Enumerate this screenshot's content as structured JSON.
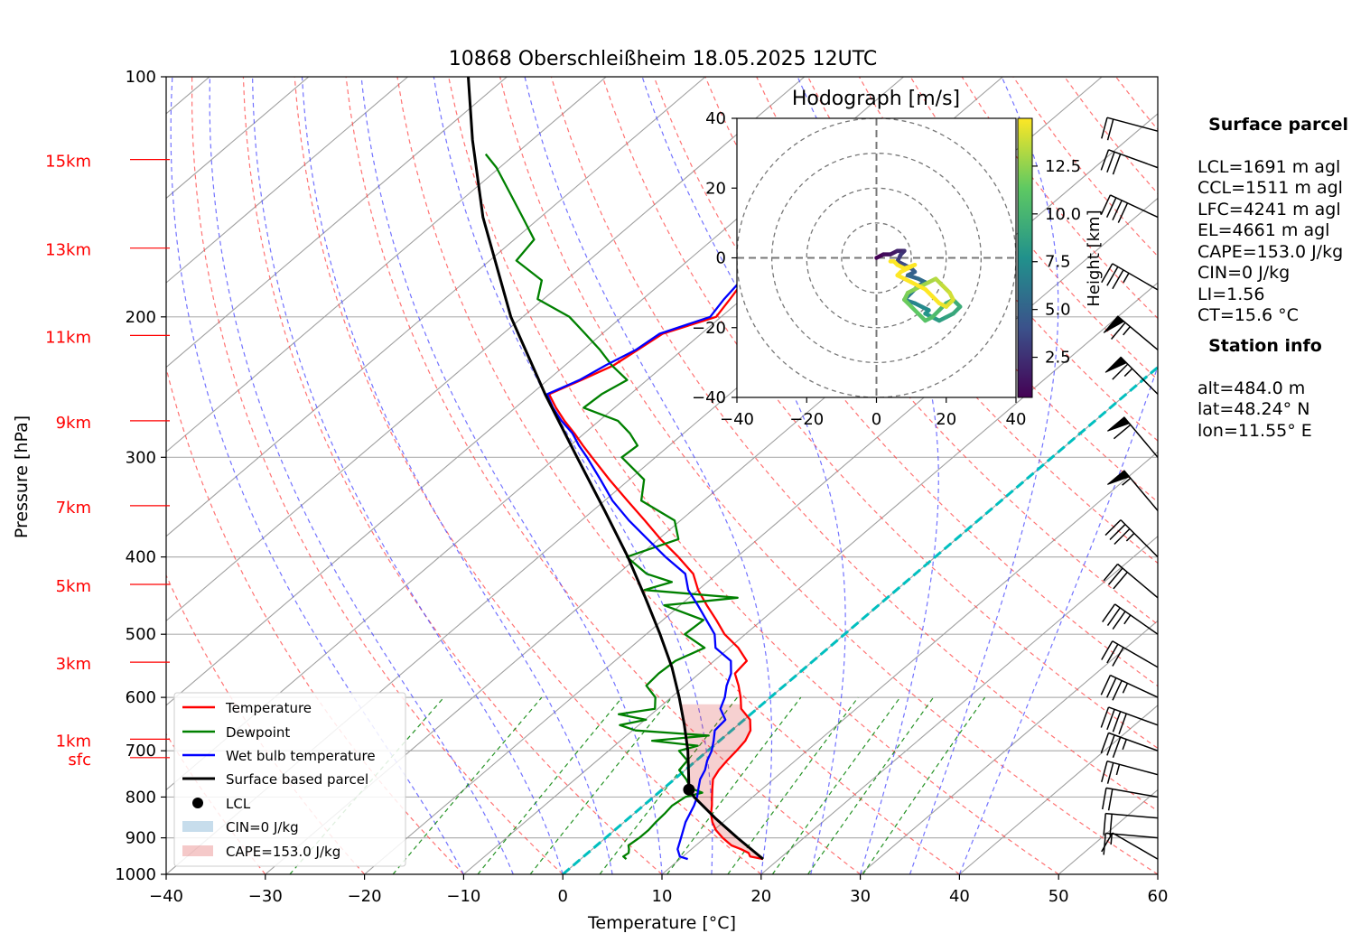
{
  "chart_data": {
    "type": "line",
    "title": "10868 Oberschleißheim 18.05.2025 12UTC",
    "xlabel": "Temperature [°C]",
    "ylabel": "Pressure [hPa]",
    "xlim": [
      -40,
      60
    ],
    "ylim": [
      1000,
      100
    ],
    "y_scale": "log",
    "skew": true,
    "x_ticks": [
      "−40",
      "−30",
      "−20",
      "−10",
      "0",
      "10",
      "20",
      "30",
      "40",
      "50",
      "60"
    ],
    "y_ticks": [
      "100",
      "200",
      "300",
      "400",
      "500",
      "600",
      "700",
      "800",
      "900",
      "1000"
    ],
    "height_labels": [
      {
        "label": "15km",
        "p": 127
      },
      {
        "label": "13km",
        "p": 164
      },
      {
        "label": "11km",
        "p": 211
      },
      {
        "label": "9km",
        "p": 270
      },
      {
        "label": "7km",
        "p": 345
      },
      {
        "label": "5km",
        "p": 433
      },
      {
        "label": "3km",
        "p": 542
      },
      {
        "label": "1km",
        "p": 677
      },
      {
        "label": "sfc",
        "p": 714
      }
    ],
    "series": [
      {
        "name": "Temperature",
        "color": "#ff0000",
        "p": [
          957,
          950,
          940,
          930,
          920,
          900,
          880,
          860,
          840,
          820,
          800,
          780,
          760,
          740,
          720,
          700,
          680,
          660,
          640,
          620,
          600,
          580,
          560,
          540,
          520,
          500,
          480,
          460,
          440,
          420,
          400,
          380,
          360,
          340,
          320,
          300,
          290,
          280,
          270,
          260,
          250,
          240,
          230,
          220,
          210,
          200,
          190,
          180,
          170,
          160,
          150,
          140,
          130,
          125,
          120
        ],
        "t": [
          18.4,
          16.8,
          16.2,
          15.0,
          13.6,
          11.8,
          10.2,
          8.9,
          7.8,
          6.9,
          5.9,
          4.9,
          3.9,
          3.4,
          3.1,
          2.9,
          2.6,
          1.9,
          0.6,
          -1.6,
          -3.0,
          -4.6,
          -6.4,
          -6.7,
          -9.1,
          -12.1,
          -14.6,
          -17.3,
          -20.0,
          -22.4,
          -25.9,
          -29.8,
          -33.6,
          -37.7,
          -42.0,
          -46.4,
          -48.7,
          -51.0,
          -53.5,
          -55.9,
          -58.2,
          -56.6,
          -55.1,
          -54.5,
          -53.9,
          -50.5,
          -51.2,
          -52.0,
          -51.4,
          -51.0,
          -51.9,
          -51.6,
          -51.0,
          -51.3,
          -50.5
        ]
      },
      {
        "name": "Dewpoint",
        "color": "#008000",
        "p": [
          957,
          950,
          940,
          930,
          920,
          900,
          880,
          860,
          840,
          820,
          800,
          790,
          780,
          760,
          740,
          720,
          700,
          690,
          680,
          670,
          660,
          650,
          640,
          630,
          620,
          600,
          580,
          560,
          540,
          520,
          500,
          480,
          460,
          450,
          440,
          430,
          420,
          400,
          380,
          360,
          340,
          320,
          300,
          290,
          280,
          270,
          260,
          250,
          240,
          230,
          220,
          210,
          200,
          190,
          180,
          170,
          160,
          150,
          140,
          130,
          125
        ],
        "t": [
          4.6,
          4.0,
          4.1,
          3.7,
          3.2,
          3.4,
          3.4,
          3.2,
          3.1,
          2.9,
          3.2,
          4.4,
          2.7,
          1.2,
          -0.6,
          -0.9,
          -2.9,
          -1.6,
          -6.8,
          -1.7,
          -9.7,
          -11.9,
          -9.9,
          -13.3,
          -10.3,
          -11.6,
          -13.9,
          -14.1,
          -13.9,
          -12.5,
          -16.1,
          -15.9,
          -21.6,
          -15.1,
          -25.4,
          -23.6,
          -27.1,
          -31.1,
          -28.0,
          -30.6,
          -36.3,
          -38.5,
          -43.4,
          -43.2,
          -45.4,
          -48.1,
          -53.1,
          -52.9,
          -52.0,
          -55.3,
          -58.3,
          -61.7,
          -65.3,
          -70.6,
          -72.4,
          -77.3,
          -78.0,
          -81.8,
          -85.9,
          -90.3,
          -93.0
        ]
      },
      {
        "name": "Wet bulb temperature",
        "color": "#0000ff",
        "p": [
          957,
          950,
          930,
          900,
          860,
          820,
          800,
          780,
          760,
          740,
          720,
          700,
          680,
          660,
          640,
          620,
          600,
          580,
          560,
          540,
          520,
          500,
          480,
          460,
          440,
          420,
          400,
          380,
          360,
          340,
          320,
          300,
          290,
          280,
          270,
          260,
          250,
          240,
          230,
          220,
          210,
          200,
          190,
          180,
          170,
          160,
          150,
          140,
          130,
          125,
          120
        ],
        "t": [
          10.8,
          9.7,
          8.6,
          7.6,
          6.2,
          5.1,
          4.4,
          3.5,
          2.6,
          2.0,
          1.1,
          0.4,
          -0.6,
          -1.7,
          -1.9,
          -3.7,
          -4.6,
          -5.8,
          -6.8,
          -8.3,
          -11.4,
          -13.1,
          -15.6,
          -18.2,
          -21.0,
          -23.2,
          -27.2,
          -31.1,
          -35.2,
          -39.2,
          -42.9,
          -46.9,
          -49.1,
          -51.2,
          -53.8,
          -56.2,
          -58.4,
          -56.8,
          -55.9,
          -54.7,
          -54.2,
          -51.1,
          -51.8,
          -52.3,
          -51.6,
          -51.4,
          -52.3,
          -51.7,
          -51.4,
          -51.6,
          -50.9
        ]
      },
      {
        "name": "Surface based parcel",
        "color": "#000000",
        "p": [
          957,
          900,
          850,
          800,
          783,
          750,
          700,
          650,
          600,
          550,
          500,
          450,
          400,
          350,
          300,
          250,
          200,
          150,
          120,
          100
        ],
        "t": [
          18.4,
          13.3,
          8.7,
          4.1,
          2.7,
          0.9,
          -2.0,
          -5.4,
          -9.2,
          -13.5,
          -18.6,
          -24.4,
          -31.0,
          -38.8,
          -47.9,
          -58.6,
          -71.2,
          -85.8,
          -96.0,
          -103.9
        ]
      }
    ],
    "lcl": {
      "name": "LCL",
      "p": 783,
      "t": 2.7
    },
    "cin_legend": "CIN=0 J/kg",
    "cape_legend": "CAPE=153.0 J/kg",
    "legend_position": "lower-left",
    "grid": true,
    "background_lines": {
      "dry_adiabats_color": "#ff4444",
      "moist_adiabats_color": "#4444ff",
      "mixing_ratio_color": "#008000",
      "zero_isotherm_color": "#00bfbf"
    },
    "hodograph": {
      "title": "Hodograph [m/s]",
      "xlim": [
        -40,
        40
      ],
      "ylim": [
        -40,
        40
      ],
      "ticks": [
        "−40",
        "−20",
        "0",
        "20",
        "40"
      ],
      "colorbar_label": "Height [km]",
      "colorbar_ticks": [
        "2.5",
        "5.0",
        "7.5",
        "10.0",
        "12.5"
      ],
      "u": [
        0,
        2,
        4,
        6,
        8,
        7,
        6,
        8,
        10,
        11,
        9,
        12,
        14,
        12,
        10,
        8,
        11,
        13,
        15,
        14,
        16,
        18,
        20,
        22,
        24,
        22,
        20,
        18,
        16,
        14,
        12,
        10,
        8,
        9,
        11,
        13,
        15,
        17,
        19,
        21,
        22,
        20,
        18,
        16,
        14,
        12,
        10,
        8,
        6,
        7,
        9,
        11,
        8,
        6,
        5,
        4
      ],
      "v": [
        0,
        1,
        1,
        2,
        2,
        1,
        -1,
        -2,
        -3,
        -4,
        -5,
        -6,
        -7,
        -8,
        -10,
        -12,
        -13,
        -14,
        -15,
        -16,
        -17,
        -18,
        -17,
        -16,
        -14,
        -12,
        -13,
        -15,
        -17,
        -18,
        -16,
        -14,
        -12,
        -10,
        -9,
        -8,
        -7,
        -6,
        -8,
        -10,
        -12,
        -14,
        -13,
        -11,
        -9,
        -8,
        -7,
        -6,
        -5,
        -4,
        -3,
        -2,
        -3,
        -2,
        -1,
        -1
      ],
      "h": [
        0.5,
        1,
        1.5,
        2,
        2.5,
        3,
        3.5,
        4,
        4.5,
        5,
        5.3,
        5.6,
        5.9,
        6.2,
        6.5,
        6.8,
        7.1,
        7.4,
        7.7,
        8,
        8.3,
        8.6,
        8.9,
        9.2,
        9.5,
        9.8,
        10.1,
        10.4,
        10.7,
        11,
        11.3,
        11.6,
        11.9,
        12.2,
        12.5,
        12.8,
        13.1,
        13.4,
        13.7,
        14,
        14.3,
        14.6,
        14.9,
        15.2,
        15.5,
        15.8,
        16,
        16.2,
        16.4,
        16.6,
        16.8,
        17,
        17.2,
        17.4,
        17.6,
        17.8
      ]
    },
    "wind_barbs": [
      {
        "p": 957,
        "dir": 240,
        "spd": 10
      },
      {
        "p": 900,
        "dir": 265,
        "spd": 15
      },
      {
        "p": 850,
        "dir": 265,
        "spd": 20
      },
      {
        "p": 800,
        "dir": 260,
        "spd": 20
      },
      {
        "p": 750,
        "dir": 255,
        "spd": 25
      },
      {
        "p": 700,
        "dir": 250,
        "spd": 35
      },
      {
        "p": 650,
        "dir": 250,
        "spd": 40
      },
      {
        "p": 600,
        "dir": 245,
        "spd": 35
      },
      {
        "p": 550,
        "dir": 240,
        "spd": 30
      },
      {
        "p": 500,
        "dir": 235,
        "spd": 35
      },
      {
        "p": 450,
        "dir": 230,
        "spd": 30
      },
      {
        "p": 400,
        "dir": 225,
        "spd": 35
      },
      {
        "p": 350,
        "dir": 220,
        "spd": 55
      },
      {
        "p": 300,
        "dir": 220,
        "spd": 60
      },
      {
        "p": 250,
        "dir": 225,
        "spd": 65
      },
      {
        "p": 220,
        "dir": 230,
        "spd": 65
      },
      {
        "p": 185,
        "dir": 240,
        "spd": 35
      },
      {
        "p": 150,
        "dir": 245,
        "spd": 40
      },
      {
        "p": 130,
        "dir": 250,
        "spd": 30
      },
      {
        "p": 117,
        "dir": 255,
        "spd": 20
      }
    ]
  },
  "info": {
    "surface_title": "Surface parcel",
    "surface_lines": [
      "LCL=1691 m agl",
      "CCL=1511 m agl",
      "LFC=4241 m agl",
      "EL=4661 m agl",
      "CAPE=153.0 J/kg",
      "CIN=0 J/kg",
      "LI=1.56",
      "CT=15.6 °C"
    ],
    "station_title": "Station info",
    "station_lines": [
      "alt=484.0 m",
      "lat=48.24° N",
      "lon=11.55° E"
    ]
  }
}
